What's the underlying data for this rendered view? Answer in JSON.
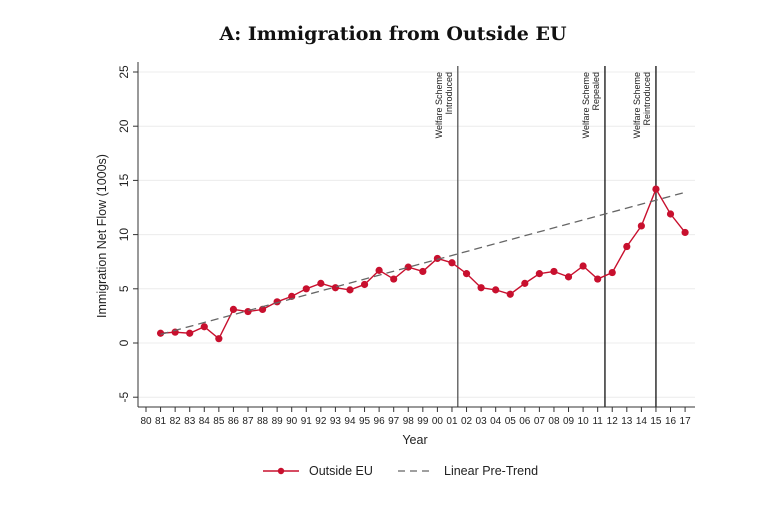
{
  "chart_data": {
    "type": "line",
    "title": "A: Immigration from Outside EU",
    "xlabel": "Year",
    "ylabel": "Immigration Net Flow (1000s)",
    "xlim": [
      80,
      117
    ],
    "ylim": [
      -6,
      26
    ],
    "grid": true,
    "x_ticks": [
      "80",
      "81",
      "82",
      "83",
      "84",
      "85",
      "86",
      "87",
      "88",
      "89",
      "90",
      "91",
      "92",
      "93",
      "94",
      "95",
      "96",
      "97",
      "98",
      "99",
      "00",
      "01",
      "02",
      "03",
      "04",
      "05",
      "06",
      "07",
      "08",
      "09",
      "10",
      "11",
      "12",
      "13",
      "14",
      "15",
      "16",
      "17"
    ],
    "y_ticks": [
      -5,
      0,
      5,
      10,
      15,
      20,
      25
    ],
    "series": [
      {
        "name": "Outside EU",
        "color": "#c8102e",
        "marker": "circle",
        "x": [
          81,
          82,
          83,
          84,
          85,
          86,
          87,
          88,
          89,
          90,
          91,
          92,
          93,
          94,
          95,
          96,
          97,
          98,
          99,
          100,
          101,
          102,
          103,
          104,
          105,
          106,
          107,
          108,
          109,
          110,
          111,
          112,
          113,
          114,
          115,
          116,
          117
        ],
        "values": [
          0.9,
          1.0,
          0.9,
          1.5,
          0.4,
          3.1,
          2.9,
          3.1,
          3.8,
          4.3,
          5.0,
          5.5,
          5.1,
          4.9,
          5.4,
          6.7,
          5.9,
          7.0,
          6.6,
          7.8,
          7.4,
          6.4,
          5.1,
          4.9,
          4.5,
          5.5,
          6.4,
          6.6,
          6.1,
          7.1,
          5.9,
          6.5,
          8.9,
          10.8,
          14.2,
          11.9,
          10.2
        ]
      },
      {
        "name": "Linear Pre-Trend",
        "color": "#666666",
        "style": "dashed",
        "x": [
          81,
          117
        ],
        "values": [
          0.8,
          13.9
        ]
      }
    ],
    "annotations": [
      {
        "x": 101.4,
        "lines": [
          "Welfare Scheme",
          "Introduced"
        ],
        "color": "#555555"
      },
      {
        "x": 111.5,
        "lines": [
          "Welfare Scheme",
          "Repealed"
        ],
        "color": "#111111"
      },
      {
        "x": 115.0,
        "lines": [
          "Welfare Scheme",
          "Reintroduced"
        ],
        "color": "#111111"
      }
    ],
    "legend": {
      "placement": "bottom",
      "entries": [
        "Outside EU",
        "Linear Pre-Trend"
      ]
    }
  }
}
